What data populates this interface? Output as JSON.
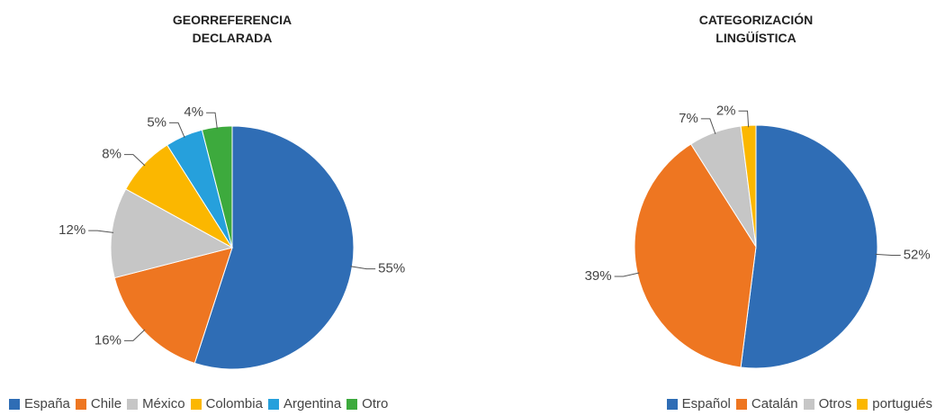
{
  "chart_data": [
    {
      "type": "pie",
      "title": "GEORREFERENCIA DECLARADA",
      "categories": [
        "España",
        "Chile",
        "México",
        "Colombia",
        "Argentina",
        "Otro"
      ],
      "values": [
        55,
        16,
        12,
        8,
        5,
        4
      ],
      "value_labels": [
        "55%",
        "16%",
        "12%",
        "8%",
        "5%",
        "4%"
      ],
      "colors": [
        "#2f6db5",
        "#ee7621",
        "#c6c6c6",
        "#fbb700",
        "#26a0dc",
        "#3daa3d"
      ]
    },
    {
      "type": "pie",
      "title": "CATEGORIZACIÓN LINGÜÍSTICA",
      "categories": [
        "Español",
        "Catalán",
        "Otros",
        "portugués"
      ],
      "values": [
        52,
        39,
        7,
        2
      ],
      "value_labels": [
        "52%",
        "39%",
        "7%",
        "2%"
      ],
      "colors": [
        "#2f6db5",
        "#ee7621",
        "#c6c6c6",
        "#fbb700"
      ]
    }
  ]
}
